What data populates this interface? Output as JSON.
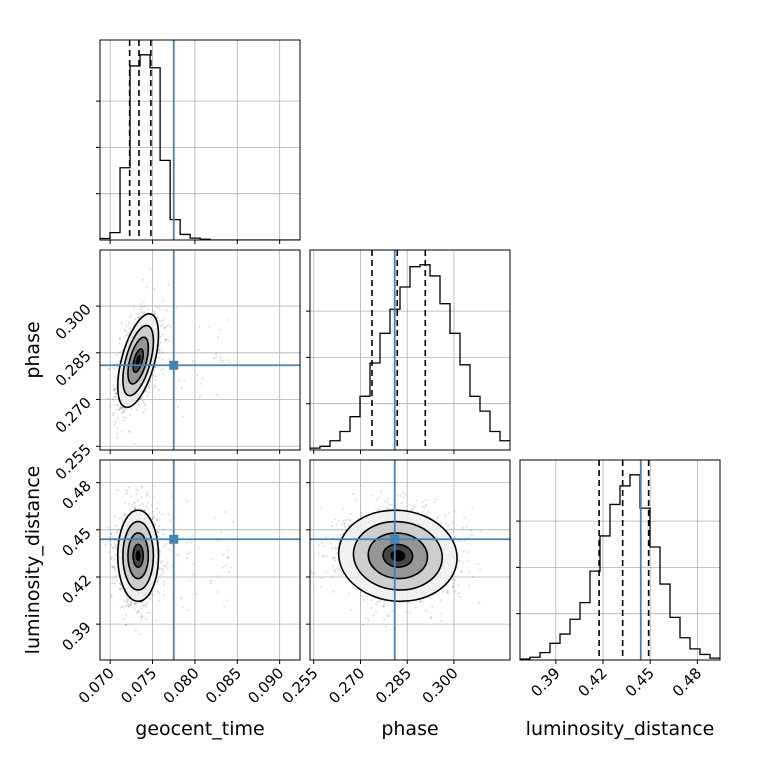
{
  "chart_data": {
    "type": "corner",
    "title": "",
    "parameters": [
      "geocent_time",
      "phase",
      "luminosity_distance"
    ],
    "axis_labels": {
      "geocent_time": "geocent_time",
      "phase": "phase",
      "luminosity_distance": "luminosity_distance"
    },
    "ranges": {
      "geocent_time": [
        0.0688,
        0.0924
      ],
      "phase": [
        0.2538,
        0.318
      ],
      "luminosity_distance": [
        0.3672,
        0.4944
      ]
    },
    "ticks": {
      "geocent_time": [
        0.07,
        0.075,
        0.08,
        0.085,
        0.09
      ],
      "phase": [
        0.255,
        0.27,
        0.285,
        0.3
      ],
      "luminosity_distance": [
        0.39,
        0.42,
        0.45,
        0.48
      ]
    },
    "tick_labels": {
      "geocent_time": [
        "0.070",
        "0.075",
        "0.080",
        "0.085",
        "0.090"
      ],
      "phase": [
        "0.255",
        "0.270",
        "0.285",
        "0.300"
      ],
      "luminosity_distance": [
        "0.39",
        "0.42",
        "0.45",
        "0.48"
      ]
    },
    "truths": {
      "geocent_time": 0.0775,
      "phase": 0.281,
      "luminosity_distance": 0.444
    },
    "quantiles": {
      "geocent_time": [
        0.0723,
        0.0734,
        0.0748
      ],
      "phase": [
        0.2737,
        0.2818,
        0.2908
      ],
      "luminosity_distance": [
        0.4175,
        0.4325,
        0.449
      ]
    },
    "histograms": {
      "geocent_time": {
        "start": 0.0688,
        "step": 0.0011822,
        "counts": [
          0.8,
          4,
          39,
          94,
          100,
          93,
          43,
          11,
          3,
          1,
          0.4,
          0,
          0,
          0,
          0,
          0,
          0,
          0,
          0,
          0
        ]
      },
      "phase": {
        "start": 0.2538,
        "step": 0.00321,
        "counts": [
          1,
          2,
          5,
          10,
          18,
          29,
          47,
          63,
          76,
          88,
          99,
          100,
          94,
          79,
          63,
          46,
          29,
          21,
          10,
          5
        ]
      },
      "luminosity_distance": {
        "start": 0.3672,
        "step": 0.00636,
        "counts": [
          0.5,
          1.5,
          4,
          9,
          14,
          22,
          31,
          48,
          67,
          84,
          94,
          100,
          82,
          61,
          41,
          23,
          12,
          6,
          3,
          1
        ]
      }
    },
    "posteriors_2d": {
      "phase_vs_geocent_time": {
        "mean": [
          0.0733,
          0.2825
        ],
        "sd": [
          0.0012,
          0.0075
        ],
        "rho": 0.55
      },
      "luminosity_distance_vs_geocent_time": {
        "mean": [
          0.0733,
          0.4335
        ],
        "sd": [
          0.0012,
          0.0145
        ],
        "rho": 0.0
      },
      "luminosity_distance_vs_phase": {
        "mean": [
          0.282,
          0.4335
        ],
        "sd": [
          0.0095,
          0.0145
        ],
        "rho": -0.05
      }
    },
    "colors": {
      "truth": "#4682b4",
      "hist": "#000000",
      "quantile": "#000000",
      "grid": "#b0b0b0",
      "samples": "#000000"
    },
    "grid": true
  }
}
